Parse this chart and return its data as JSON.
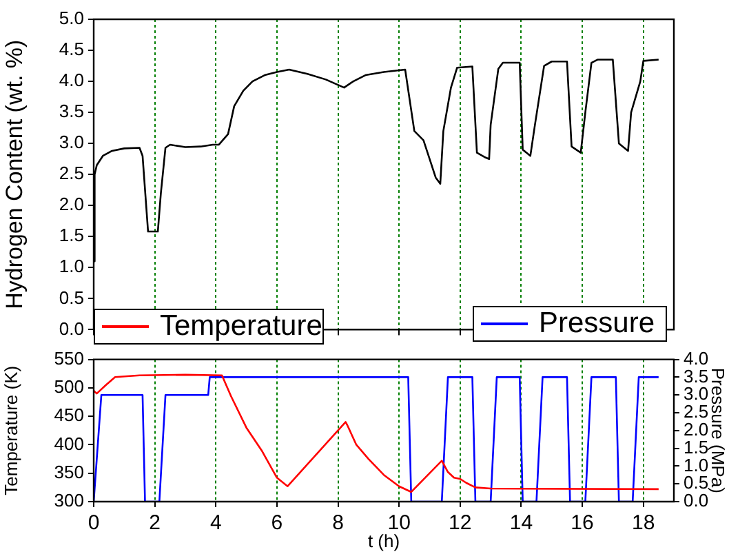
{
  "chart_data": [
    {
      "type": "line",
      "color": "#000000",
      "ylabel": "Hydrogen Content (wt. %)",
      "xlim": [
        0,
        19
      ],
      "xticks": [
        0,
        2,
        4,
        6,
        8,
        10,
        12,
        14,
        16,
        18
      ],
      "ylim": [
        0,
        5
      ],
      "yticks": [
        {
          "value": 0,
          "label": "0.0"
        },
        {
          "value": 0.5,
          "label": "0.5"
        },
        {
          "value": 1,
          "label": "1.0"
        },
        {
          "value": 1.5,
          "label": "1.5"
        },
        {
          "value": 2,
          "label": "2.0"
        },
        {
          "value": 2.5,
          "label": "2.5"
        },
        {
          "value": 3,
          "label": "3.0"
        },
        {
          "value": 3.5,
          "label": "3.5"
        },
        {
          "value": 4,
          "label": "4.0"
        },
        {
          "value": 4.5,
          "label": "4.5"
        },
        {
          "value": 5,
          "label": "5.0"
        }
      ],
      "grid": "x",
      "tick_labels": "y",
      "x": [
        0,
        0.03,
        0.1,
        0.3,
        0.6,
        1.0,
        1.5,
        1.6,
        1.78,
        2.1,
        2.2,
        2.35,
        2.5,
        3.0,
        3.5,
        3.9,
        4.1,
        4.4,
        4.6,
        4.9,
        5.2,
        5.6,
        6.0,
        6.4,
        7.0,
        7.6,
        8.2,
        8.5,
        8.9,
        9.5,
        10.2,
        10.5,
        10.8,
        11.0,
        11.2,
        11.35,
        11.45,
        11.7,
        11.9,
        12.4,
        12.55,
        12.8,
        12.95,
        13.0,
        13.25,
        13.4,
        13.95,
        14.05,
        14.3,
        14.45,
        14.75,
        15.0,
        15.5,
        15.65,
        15.95,
        16.1,
        16.3,
        16.5,
        17.0,
        17.2,
        17.5,
        17.6,
        17.9,
        18.0,
        18.5
      ],
      "values": [
        1.1,
        2.5,
        2.65,
        2.8,
        2.88,
        2.92,
        2.93,
        2.8,
        1.58,
        1.58,
        2.2,
        2.93,
        2.98,
        2.94,
        2.95,
        2.98,
        2.98,
        3.15,
        3.6,
        3.85,
        4.0,
        4.1,
        4.15,
        4.19,
        4.12,
        4.03,
        3.9,
        4.0,
        4.1,
        4.15,
        4.19,
        3.2,
        3.05,
        2.75,
        2.45,
        2.35,
        3.2,
        3.9,
        4.22,
        4.24,
        2.85,
        2.78,
        2.75,
        3.3,
        4.2,
        4.3,
        4.3,
        2.9,
        2.8,
        3.3,
        4.25,
        4.32,
        4.32,
        2.95,
        2.85,
        3.5,
        4.3,
        4.35,
        4.35,
        3.0,
        2.88,
        3.5,
        4.0,
        4.33,
        4.35
      ]
    },
    {
      "type": "line",
      "xlabel": "t (h)",
      "ylabel": "Temperature (K)",
      "y2label": "Pressure (MPa)",
      "xlim": [
        0,
        19
      ],
      "xticks": [
        0,
        2,
        4,
        6,
        8,
        10,
        12,
        14,
        16,
        18
      ],
      "ylim": [
        300,
        550
      ],
      "yticks": [
        300,
        350,
        400,
        450,
        500,
        550
      ],
      "y2lim": [
        0,
        4
      ],
      "y2ticks": [
        {
          "value": 0,
          "label": "0.0"
        },
        {
          "value": 0.5,
          "label": "0.5"
        },
        {
          "value": 1,
          "label": "1.0"
        },
        {
          "value": 1.5,
          "label": "1.5"
        },
        {
          "value": 2,
          "label": "2.0"
        },
        {
          "value": 2.5,
          "label": "2.5"
        },
        {
          "value": 3,
          "label": "3.0"
        },
        {
          "value": 3.5,
          "label": "3.5"
        },
        {
          "value": 4,
          "label": "4.0"
        }
      ],
      "grid": "x",
      "legend": "top",
      "series": [
        {
          "name": "Temperature",
          "color": "#ff0000",
          "x": [
            0,
            0.1,
            0.4,
            0.7,
            1.5,
            3.0,
            4.2,
            4.5,
            5.0,
            5.5,
            6.0,
            6.35,
            8.25,
            8.3,
            8.6,
            9.0,
            9.5,
            10.0,
            10.4,
            11.4,
            11.6,
            11.8,
            12.0,
            12.2,
            12.5,
            13.0,
            18.5
          ],
          "values": [
            495,
            490,
            505,
            519,
            522,
            523,
            522,
            485,
            430,
            390,
            342,
            327,
            440,
            435,
            400,
            375,
            347,
            327,
            317,
            372,
            352,
            342,
            340,
            333,
            325,
            323,
            322
          ]
        },
        {
          "name": "Pressure",
          "color": "#0000ff",
          "axis": "y2",
          "x": [
            0,
            0.25,
            1.6,
            1.68,
            2.15,
            2.35,
            3.75,
            3.8,
            10.3,
            10.4,
            11.4,
            11.6,
            12.4,
            12.5,
            13.0,
            13.2,
            13.95,
            14.05,
            14.5,
            14.7,
            15.5,
            15.6,
            16.1,
            16.3,
            17.1,
            17.2,
            17.65,
            17.85,
            18.5
          ],
          "values": [
            0,
            3.0,
            3.0,
            0,
            0,
            3.0,
            3.0,
            3.5,
            3.5,
            0,
            0,
            3.5,
            3.5,
            0,
            0,
            3.5,
            3.5,
            0,
            0,
            3.5,
            3.5,
            0,
            0,
            3.5,
            3.5,
            0,
            0,
            3.5,
            3.5
          ]
        }
      ]
    }
  ]
}
